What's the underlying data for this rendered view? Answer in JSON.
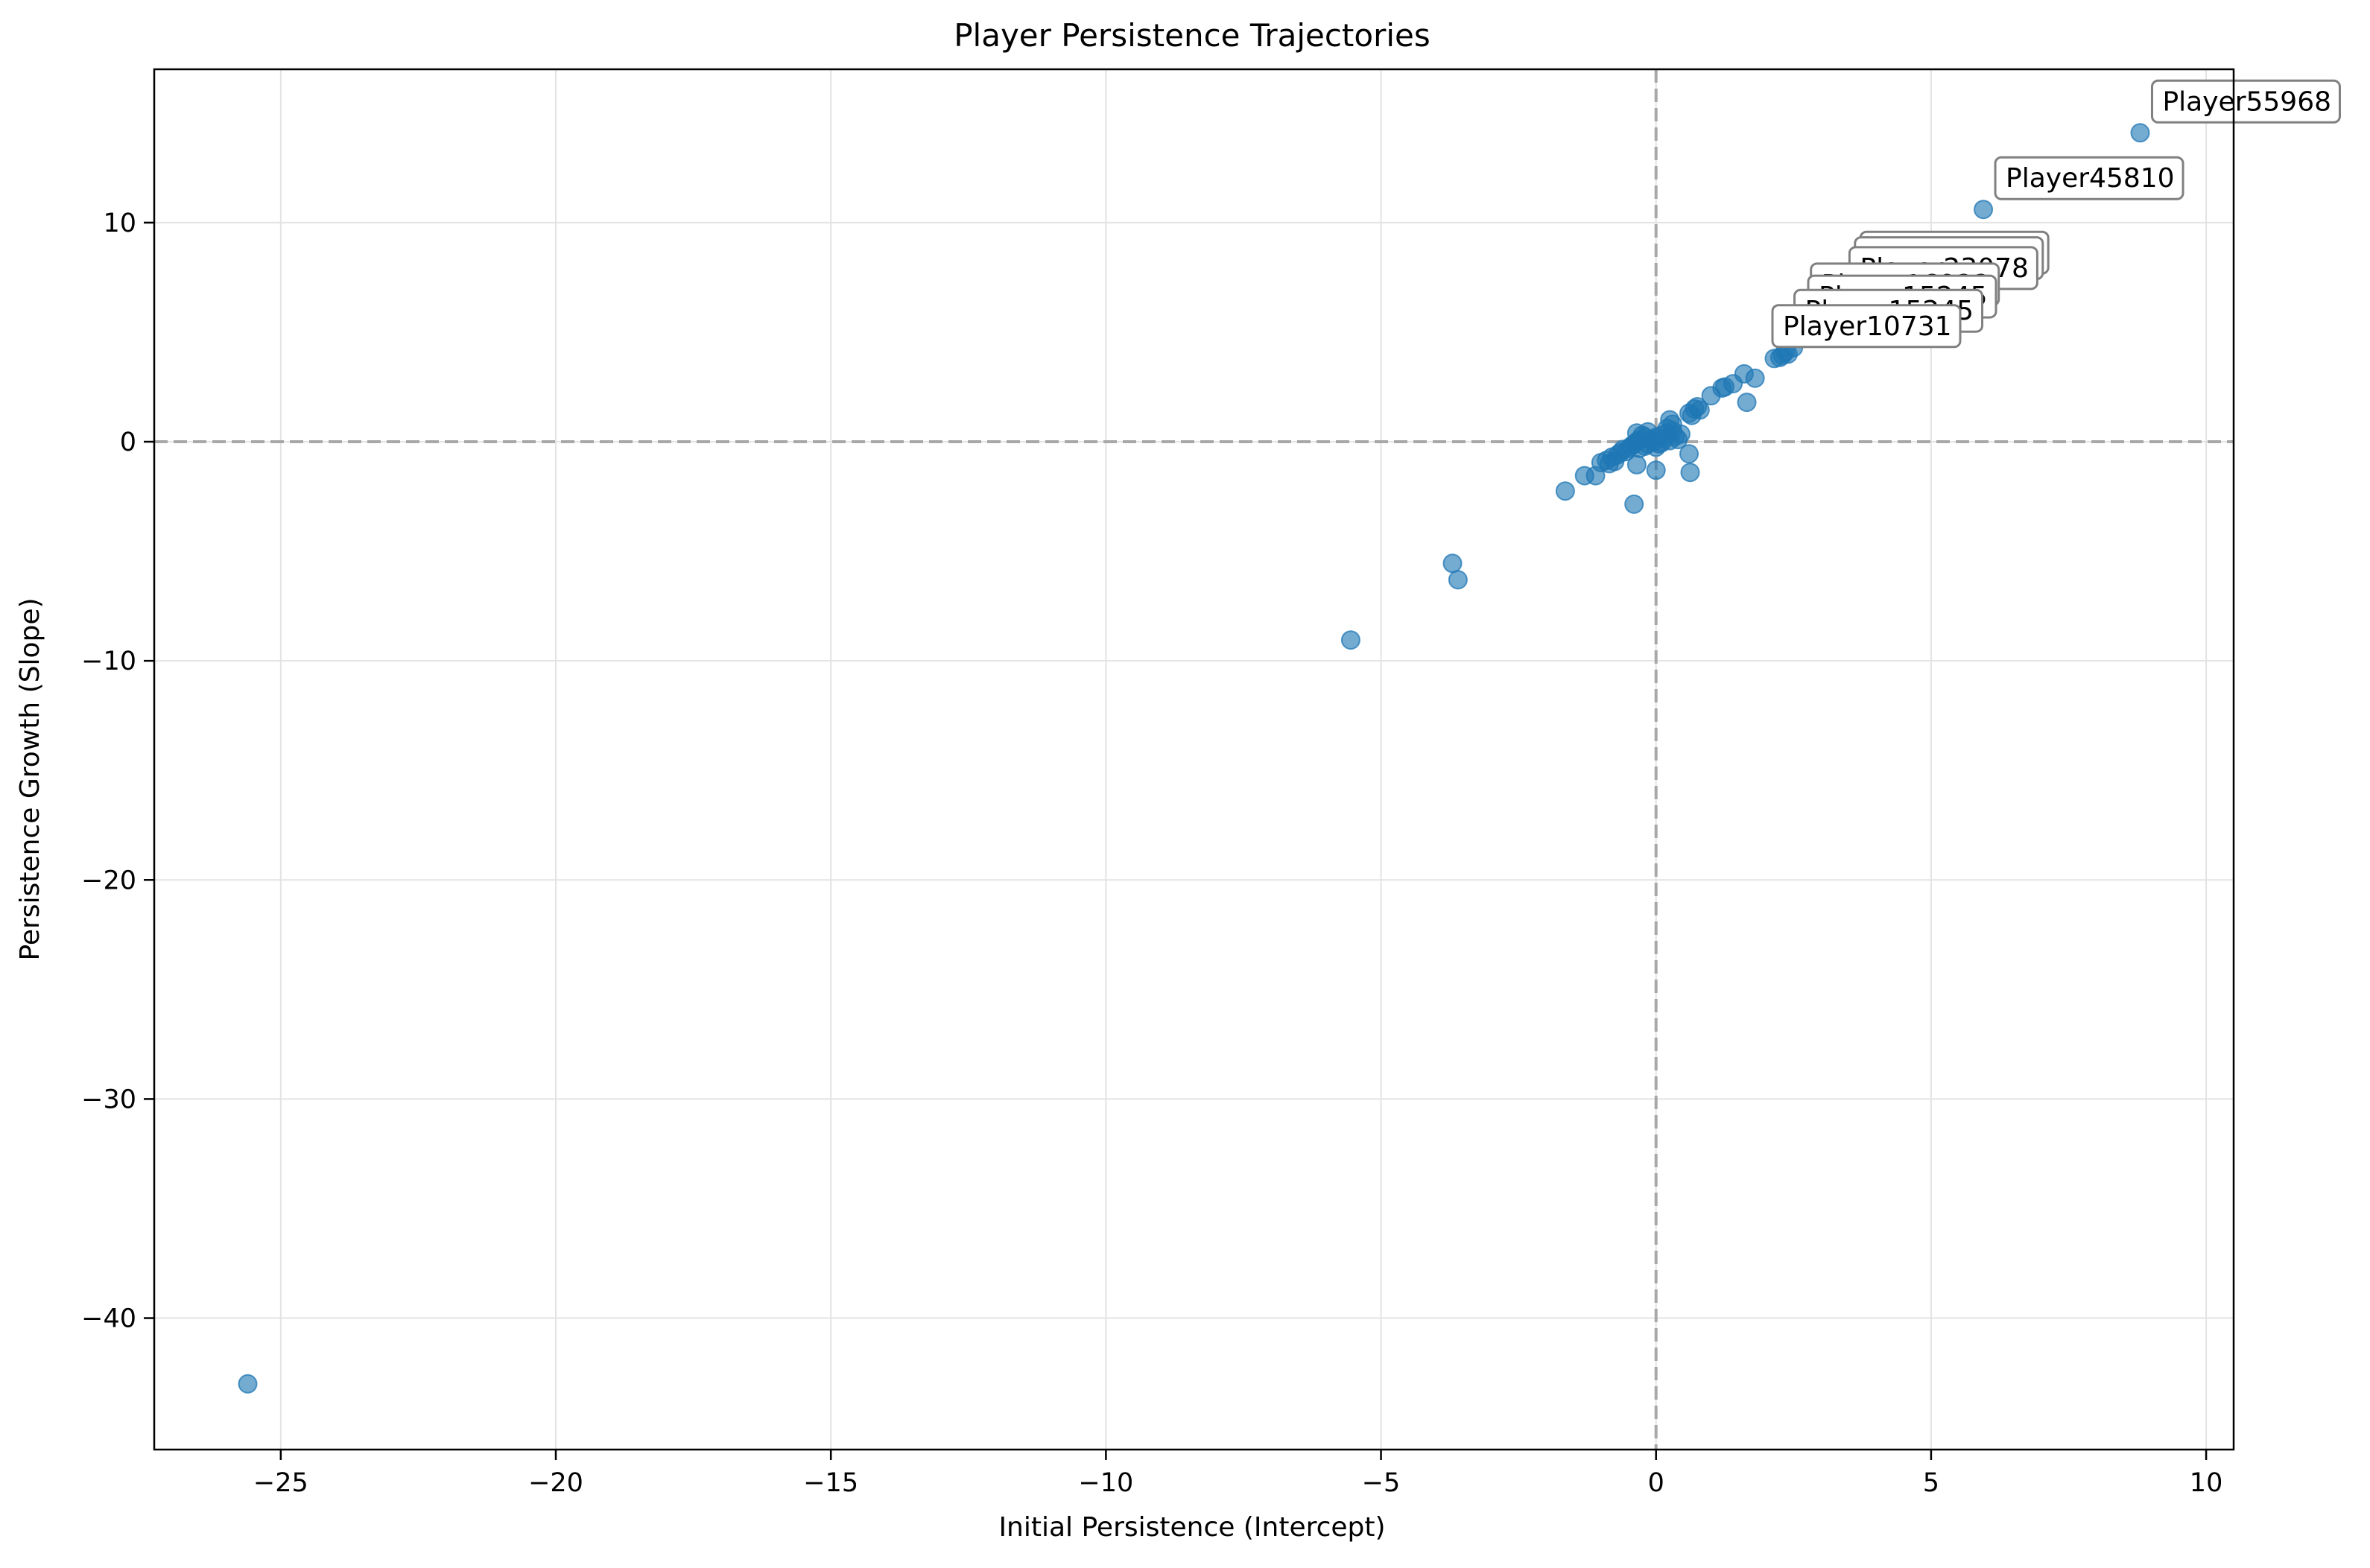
{
  "chart_data": {
    "type": "scatter",
    "title": "Player Persistence Trajectories",
    "xlabel": "Initial Persistence (Intercept)",
    "ylabel": "Persistence Growth (Slope)",
    "xlim": [
      -27.3,
      10.5
    ],
    "ylim": [
      -46.0,
      17.0
    ],
    "xticks": [
      -25,
      -20,
      -15,
      -10,
      -5,
      0,
      5,
      10
    ],
    "yticks": [
      -40,
      -30,
      -20,
      -10,
      0,
      10
    ],
    "grid": true,
    "reference_lines": {
      "x": 0,
      "y": 0,
      "style": "dashed"
    },
    "marker_color": "#1f77b4",
    "points": [
      [
        8.8,
        14.1
      ],
      [
        5.95,
        10.6
      ],
      [
        -25.6,
        -43.0
      ],
      [
        -5.55,
        -9.05
      ],
      [
        -3.7,
        -5.55
      ],
      [
        -3.6,
        -6.3
      ],
      [
        -1.65,
        -2.25
      ],
      [
        -1.3,
        -1.55
      ],
      [
        -1.1,
        -1.55
      ],
      [
        -1.0,
        -0.95
      ],
      [
        -0.9,
        -0.85
      ],
      [
        -0.85,
        -1.0
      ],
      [
        -0.8,
        -0.7
      ],
      [
        -0.75,
        -0.9
      ],
      [
        -0.7,
        -0.6
      ],
      [
        -0.65,
        -0.5
      ],
      [
        -0.6,
        -0.35
      ],
      [
        -0.55,
        -0.45
      ],
      [
        -0.5,
        -0.3
      ],
      [
        -0.45,
        -0.2
      ],
      [
        -0.4,
        -0.1
      ],
      [
        -0.35,
        0.0
      ],
      [
        -0.3,
        0.1
      ],
      [
        -0.25,
        0.3
      ],
      [
        -0.2,
        0.2
      ],
      [
        -0.15,
        -0.1
      ],
      [
        -0.1,
        0.1
      ],
      [
        -0.05,
        0.0
      ],
      [
        0.0,
        0.2
      ],
      [
        0.05,
        -0.1
      ],
      [
        0.1,
        0.3
      ],
      [
        0.15,
        0.15
      ],
      [
        0.2,
        0.4
      ],
      [
        0.25,
        0.05
      ],
      [
        0.3,
        0.5
      ],
      [
        0.35,
        0.25
      ],
      [
        0.4,
        0.1
      ],
      [
        0.45,
        0.35
      ],
      [
        -0.35,
        0.4
      ],
      [
        -0.3,
        -0.3
      ],
      [
        -0.2,
        -0.2
      ],
      [
        -0.15,
        0.45
      ],
      [
        0.0,
        -0.25
      ],
      [
        0.1,
        -0.05
      ],
      [
        0.25,
        1.0
      ],
      [
        0.3,
        0.8
      ],
      [
        0.2,
        0.6
      ],
      [
        -0.4,
        -2.85
      ],
      [
        -0.35,
        -1.05
      ],
      [
        0.0,
        -1.3
      ],
      [
        0.6,
        -0.55
      ],
      [
        0.62,
        -1.4
      ],
      [
        0.6,
        1.3
      ],
      [
        0.65,
        1.2
      ],
      [
        0.7,
        1.5
      ],
      [
        0.75,
        1.6
      ],
      [
        0.8,
        1.45
      ],
      [
        1.0,
        2.1
      ],
      [
        1.2,
        2.45
      ],
      [
        1.25,
        2.5
      ],
      [
        1.4,
        2.65
      ],
      [
        1.6,
        3.1
      ],
      [
        1.65,
        1.8
      ],
      [
        1.8,
        2.9
      ],
      [
        2.15,
        3.8
      ],
      [
        2.25,
        3.85
      ],
      [
        2.3,
        3.95
      ],
      [
        2.35,
        4.1
      ],
      [
        2.4,
        4.0
      ],
      [
        2.5,
        4.3
      ]
    ],
    "annotations": [
      {
        "label": "Player55968",
        "x": 8.8,
        "y": 14.1,
        "z": 3
      },
      {
        "label": "Player45810",
        "x": 5.95,
        "y": 10.6,
        "z": 3
      },
      {
        "label": "Player57389",
        "x": 3.5,
        "y": 7.2,
        "z": 1
      },
      {
        "label": "Player57209",
        "x": 3.4,
        "y": 6.95,
        "z": 1
      },
      {
        "label": "Player23078",
        "x": 3.3,
        "y": 6.5,
        "z": 1
      },
      {
        "label": "Player16922",
        "x": 2.6,
        "y": 5.75,
        "z": 1
      },
      {
        "label": "Player15245",
        "x": 2.55,
        "y": 5.2,
        "z": 1
      },
      {
        "label": "Player15245",
        "x": 2.3,
        "y": 4.55,
        "z": 1
      },
      {
        "label": "Player10731",
        "x": 1.9,
        "y": 3.85,
        "z": 2
      }
    ]
  }
}
